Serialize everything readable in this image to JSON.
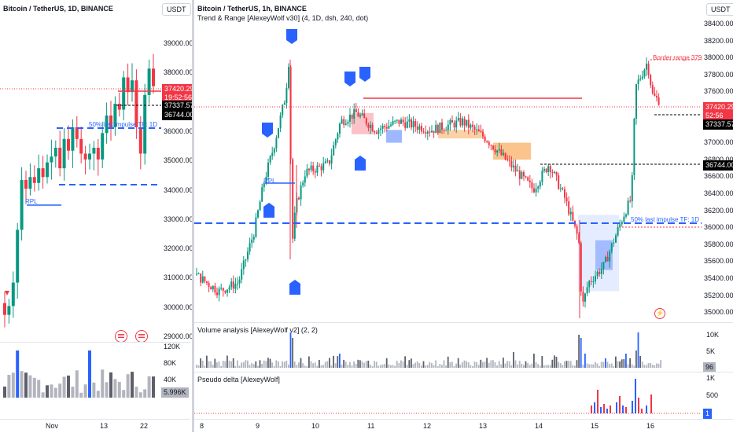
{
  "left": {
    "title": "Bitcoin / TetherUS, 1D, BINANCE",
    "currency": "USDT",
    "price_axis": [
      "39000.00",
      "38000.00",
      "37000.00",
      "36000.00",
      "35000.00",
      "34000.00",
      "33000.00",
      "32000.00",
      "31000.00",
      "30000.00",
      "29000.00"
    ],
    "price_tags": {
      "last": "37420.29",
      "countdown": "19:52:56",
      "level1": "37337.57",
      "level2": "36744.00"
    },
    "annotations": {
      "impulse": "50% last impulse TF: 1D",
      "rpl": "RPL"
    },
    "volume_axis": [
      "120K",
      "80K",
      "40K"
    ],
    "volume_tag": "5.996K",
    "time_axis": [
      "Nov",
      "13",
      "22"
    ]
  },
  "right": {
    "title": "Bitcoin / TetherUS, 1h, BINANCE",
    "indicator": "Trend & Range [AlexeyWolf v30] (4, 1D, dsh, 240, dot)",
    "currency": "USDT",
    "price_axis": [
      "38400.00",
      "38200.00",
      "38000.00",
      "37800.00",
      "37600.00",
      "37400.00",
      "37200.00",
      "37000.00",
      "36800.00",
      "36600.00",
      "36400.00",
      "36200.00",
      "36000.00",
      "35800.00",
      "35600.00",
      "35400.00",
      "35200.00",
      "35000.00"
    ],
    "price_tags": {
      "last": "37420.29",
      "countdown": "52:56",
      "level1": "37337.57",
      "level2": "36744.00"
    },
    "annotations": {
      "border_range": "Border range 37972...",
      "impulse": "50% last impulse TF: 1D",
      "rpl": "RPL"
    },
    "volume_title": "Volume analysis [AlexeyWolf v2] (2, 2)",
    "volume_axis": [
      "10K",
      "5K"
    ],
    "volume_tag": "96",
    "delta_title": "Pseudo delta [AlexeyWolf]",
    "delta_axis": [
      "1K",
      "500"
    ],
    "delta_tag": "1",
    "time_axis": [
      "8",
      "9",
      "10",
      "11",
      "12",
      "13",
      "14",
      "15",
      "16"
    ]
  },
  "colors": {
    "up": "#089981",
    "down": "#f23645",
    "blue": "#2962ff",
    "volume_gray": "#b2b5be",
    "volume_dark": "#5d606b"
  }
}
